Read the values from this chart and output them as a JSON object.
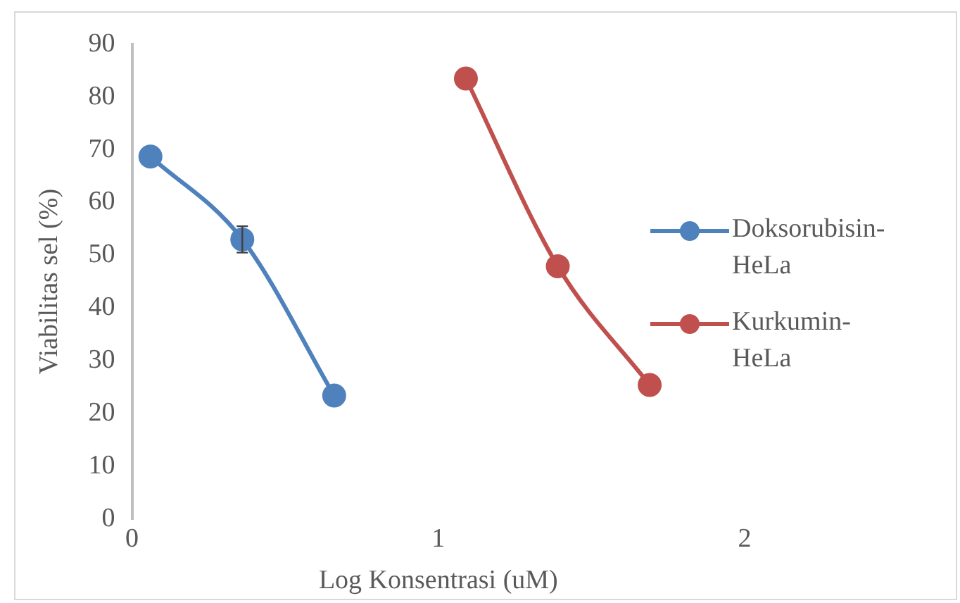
{
  "chart_data": {
    "type": "line",
    "xlabel": "Log Konsentrasi (uM)",
    "ylabel": "Viabilitas sel (%)",
    "xlim": [
      0,
      2
    ],
    "xticks": [
      0,
      1,
      2
    ],
    "ylim": [
      0,
      90
    ],
    "yticks": [
      0,
      10,
      20,
      30,
      40,
      50,
      60,
      70,
      80,
      90
    ],
    "grid": false,
    "legend": "right",
    "marker": "circle",
    "series": [
      {
        "name": "Doksorubisin-HeLa",
        "color": "#4f81bd",
        "x": [
          0.06,
          0.36,
          0.66
        ],
        "values": [
          68.7,
          53,
          23.4
        ],
        "errors": [
          null,
          2.5,
          null
        ]
      },
      {
        "name": "Kurkumin-HeLa",
        "color": "#c0504d",
        "x": [
          1.09,
          1.39,
          1.69
        ],
        "values": [
          83.5,
          47.9,
          25.4
        ]
      }
    ]
  }
}
